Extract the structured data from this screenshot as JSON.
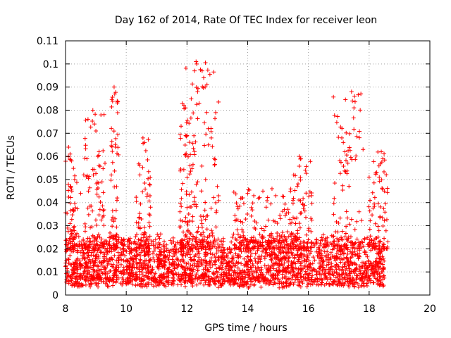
{
  "chart_data": {
    "type": "scatter",
    "title": "Day 162 of 2014, Rate Of TEC Index for receiver leon",
    "xlabel": "GPS time / hours",
    "ylabel": "ROTI / TECUs",
    "xlim": [
      8,
      20
    ],
    "ylim": [
      0,
      0.11
    ],
    "x_ticks": [
      8,
      10,
      12,
      14,
      16,
      18,
      20
    ],
    "x_tick_labels": [
      "8",
      "10",
      "12",
      "14",
      "16",
      "18",
      "20"
    ],
    "y_ticks": [
      0,
      0.01,
      0.02,
      0.03,
      0.04,
      0.05,
      0.06,
      0.07,
      0.08,
      0.09,
      0.1,
      0.11
    ],
    "y_tick_labels": [
      "0",
      "0.01",
      "0.02",
      "0.03",
      "0.04",
      "0.05",
      "0.06",
      "0.07",
      "0.08",
      "0.09",
      "0.1",
      "0.11"
    ],
    "grid": true,
    "marker": "+",
    "color": "#ff0000",
    "series": [
      {
        "name": "ROTI",
        "x_range": [
          8.0,
          18.5
        ],
        "baseline_range": [
          0.005,
          0.025
        ],
        "notable_points": [
          {
            "x": 8.1,
            "y": 0.064
          },
          {
            "x": 8.15,
            "y": 0.061
          },
          {
            "x": 8.2,
            "y": 0.058
          },
          {
            "x": 8.3,
            "y": 0.05
          },
          {
            "x": 8.5,
            "y": 0.044
          },
          {
            "x": 8.6,
            "y": 0.052
          },
          {
            "x": 8.9,
            "y": 0.08
          },
          {
            "x": 8.95,
            "y": 0.074
          },
          {
            "x": 9.0,
            "y": 0.071
          },
          {
            "x": 9.1,
            "y": 0.056
          },
          {
            "x": 9.2,
            "y": 0.049
          },
          {
            "x": 9.3,
            "y": 0.057
          },
          {
            "x": 9.6,
            "y": 0.09
          },
          {
            "x": 9.62,
            "y": 0.087
          },
          {
            "x": 9.65,
            "y": 0.064
          },
          {
            "x": 9.7,
            "y": 0.042
          },
          {
            "x": 10.45,
            "y": 0.052
          },
          {
            "x": 10.55,
            "y": 0.068
          },
          {
            "x": 10.6,
            "y": 0.066
          },
          {
            "x": 10.8,
            "y": 0.038
          },
          {
            "x": 11.9,
            "y": 0.082
          },
          {
            "x": 11.95,
            "y": 0.081
          },
          {
            "x": 12.0,
            "y": 0.069
          },
          {
            "x": 12.1,
            "y": 0.056
          },
          {
            "x": 12.3,
            "y": 0.101
          },
          {
            "x": 12.32,
            "y": 0.1
          },
          {
            "x": 12.35,
            "y": 0.088
          },
          {
            "x": 12.4,
            "y": 0.083
          },
          {
            "x": 12.5,
            "y": 0.097
          },
          {
            "x": 12.55,
            "y": 0.094
          },
          {
            "x": 12.6,
            "y": 0.09
          },
          {
            "x": 12.65,
            "y": 0.079
          },
          {
            "x": 12.7,
            "y": 0.072
          },
          {
            "x": 12.8,
            "y": 0.068
          },
          {
            "x": 12.9,
            "y": 0.059
          },
          {
            "x": 13.0,
            "y": 0.047
          },
          {
            "x": 14.0,
            "y": 0.044
          },
          {
            "x": 14.5,
            "y": 0.045
          },
          {
            "x": 14.8,
            "y": 0.046
          },
          {
            "x": 15.7,
            "y": 0.06
          },
          {
            "x": 15.75,
            "y": 0.059
          },
          {
            "x": 15.9,
            "y": 0.054
          },
          {
            "x": 16.1,
            "y": 0.043
          },
          {
            "x": 17.1,
            "y": 0.068
          },
          {
            "x": 17.15,
            "y": 0.066
          },
          {
            "x": 17.2,
            "y": 0.062
          },
          {
            "x": 17.3,
            "y": 0.057
          },
          {
            "x": 17.42,
            "y": 0.088
          },
          {
            "x": 17.45,
            "y": 0.084
          },
          {
            "x": 17.5,
            "y": 0.081
          },
          {
            "x": 17.8,
            "y": 0.063
          },
          {
            "x": 18.0,
            "y": 0.051
          },
          {
            "x": 18.4,
            "y": 0.062
          },
          {
            "x": 18.45,
            "y": 0.059
          },
          {
            "x": 18.5,
            "y": 0.045
          }
        ],
        "peak_regions": [
          {
            "center": 8.2,
            "width": 0.25,
            "max": 0.064
          },
          {
            "center": 8.95,
            "width": 0.4,
            "max": 0.08
          },
          {
            "center": 9.6,
            "width": 0.2,
            "max": 0.09
          },
          {
            "center": 10.55,
            "width": 0.3,
            "max": 0.068
          },
          {
            "center": 12.0,
            "width": 0.3,
            "max": 0.083
          },
          {
            "center": 12.5,
            "width": 0.7,
            "max": 0.101
          },
          {
            "center": 14.5,
            "width": 1.2,
            "max": 0.046
          },
          {
            "center": 15.8,
            "width": 0.4,
            "max": 0.06
          },
          {
            "center": 17.3,
            "width": 0.6,
            "max": 0.088
          },
          {
            "center": 18.3,
            "width": 0.4,
            "max": 0.062
          }
        ]
      }
    ]
  }
}
